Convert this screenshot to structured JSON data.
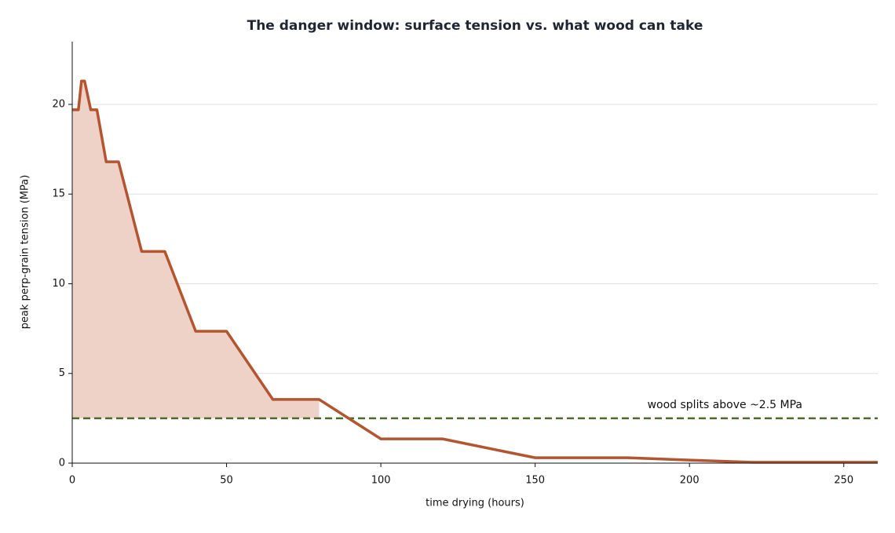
{
  "chart_data": {
    "type": "line",
    "title": "The danger window: surface tension vs. what wood can take",
    "xlabel": "time drying (hours)",
    "ylabel": "peak perp-grain tension (MPa)",
    "x": [
      0,
      2,
      3,
      4,
      6,
      8,
      11,
      15,
      22.5,
      30,
      40,
      50,
      65,
      80,
      100,
      120,
      150,
      180,
      200,
      220,
      261
    ],
    "series": [
      {
        "name": "peak perp-grain tension",
        "color": "#b5552f",
        "values": [
          19.7,
          19.7,
          21.3,
          21.3,
          19.7,
          19.7,
          16.8,
          16.8,
          11.8,
          11.8,
          7.35,
          7.35,
          3.55,
          3.55,
          1.35,
          1.35,
          0.3,
          0.3,
          0.17,
          0.05,
          0.05
        ]
      }
    ],
    "threshold": {
      "value": 2.5,
      "label": "wood splits above ~2.5 MPa",
      "color": "#4a6b2a"
    },
    "shade_xlim": [
      0,
      80
    ],
    "shade_color": "#efd2c7",
    "xlim": [
      0,
      261
    ],
    "ylim": [
      0,
      23.5
    ],
    "xticks": [
      0,
      50,
      100,
      150,
      200,
      250
    ],
    "yticks": [
      0,
      5,
      10,
      15,
      20
    ],
    "grid": true
  }
}
